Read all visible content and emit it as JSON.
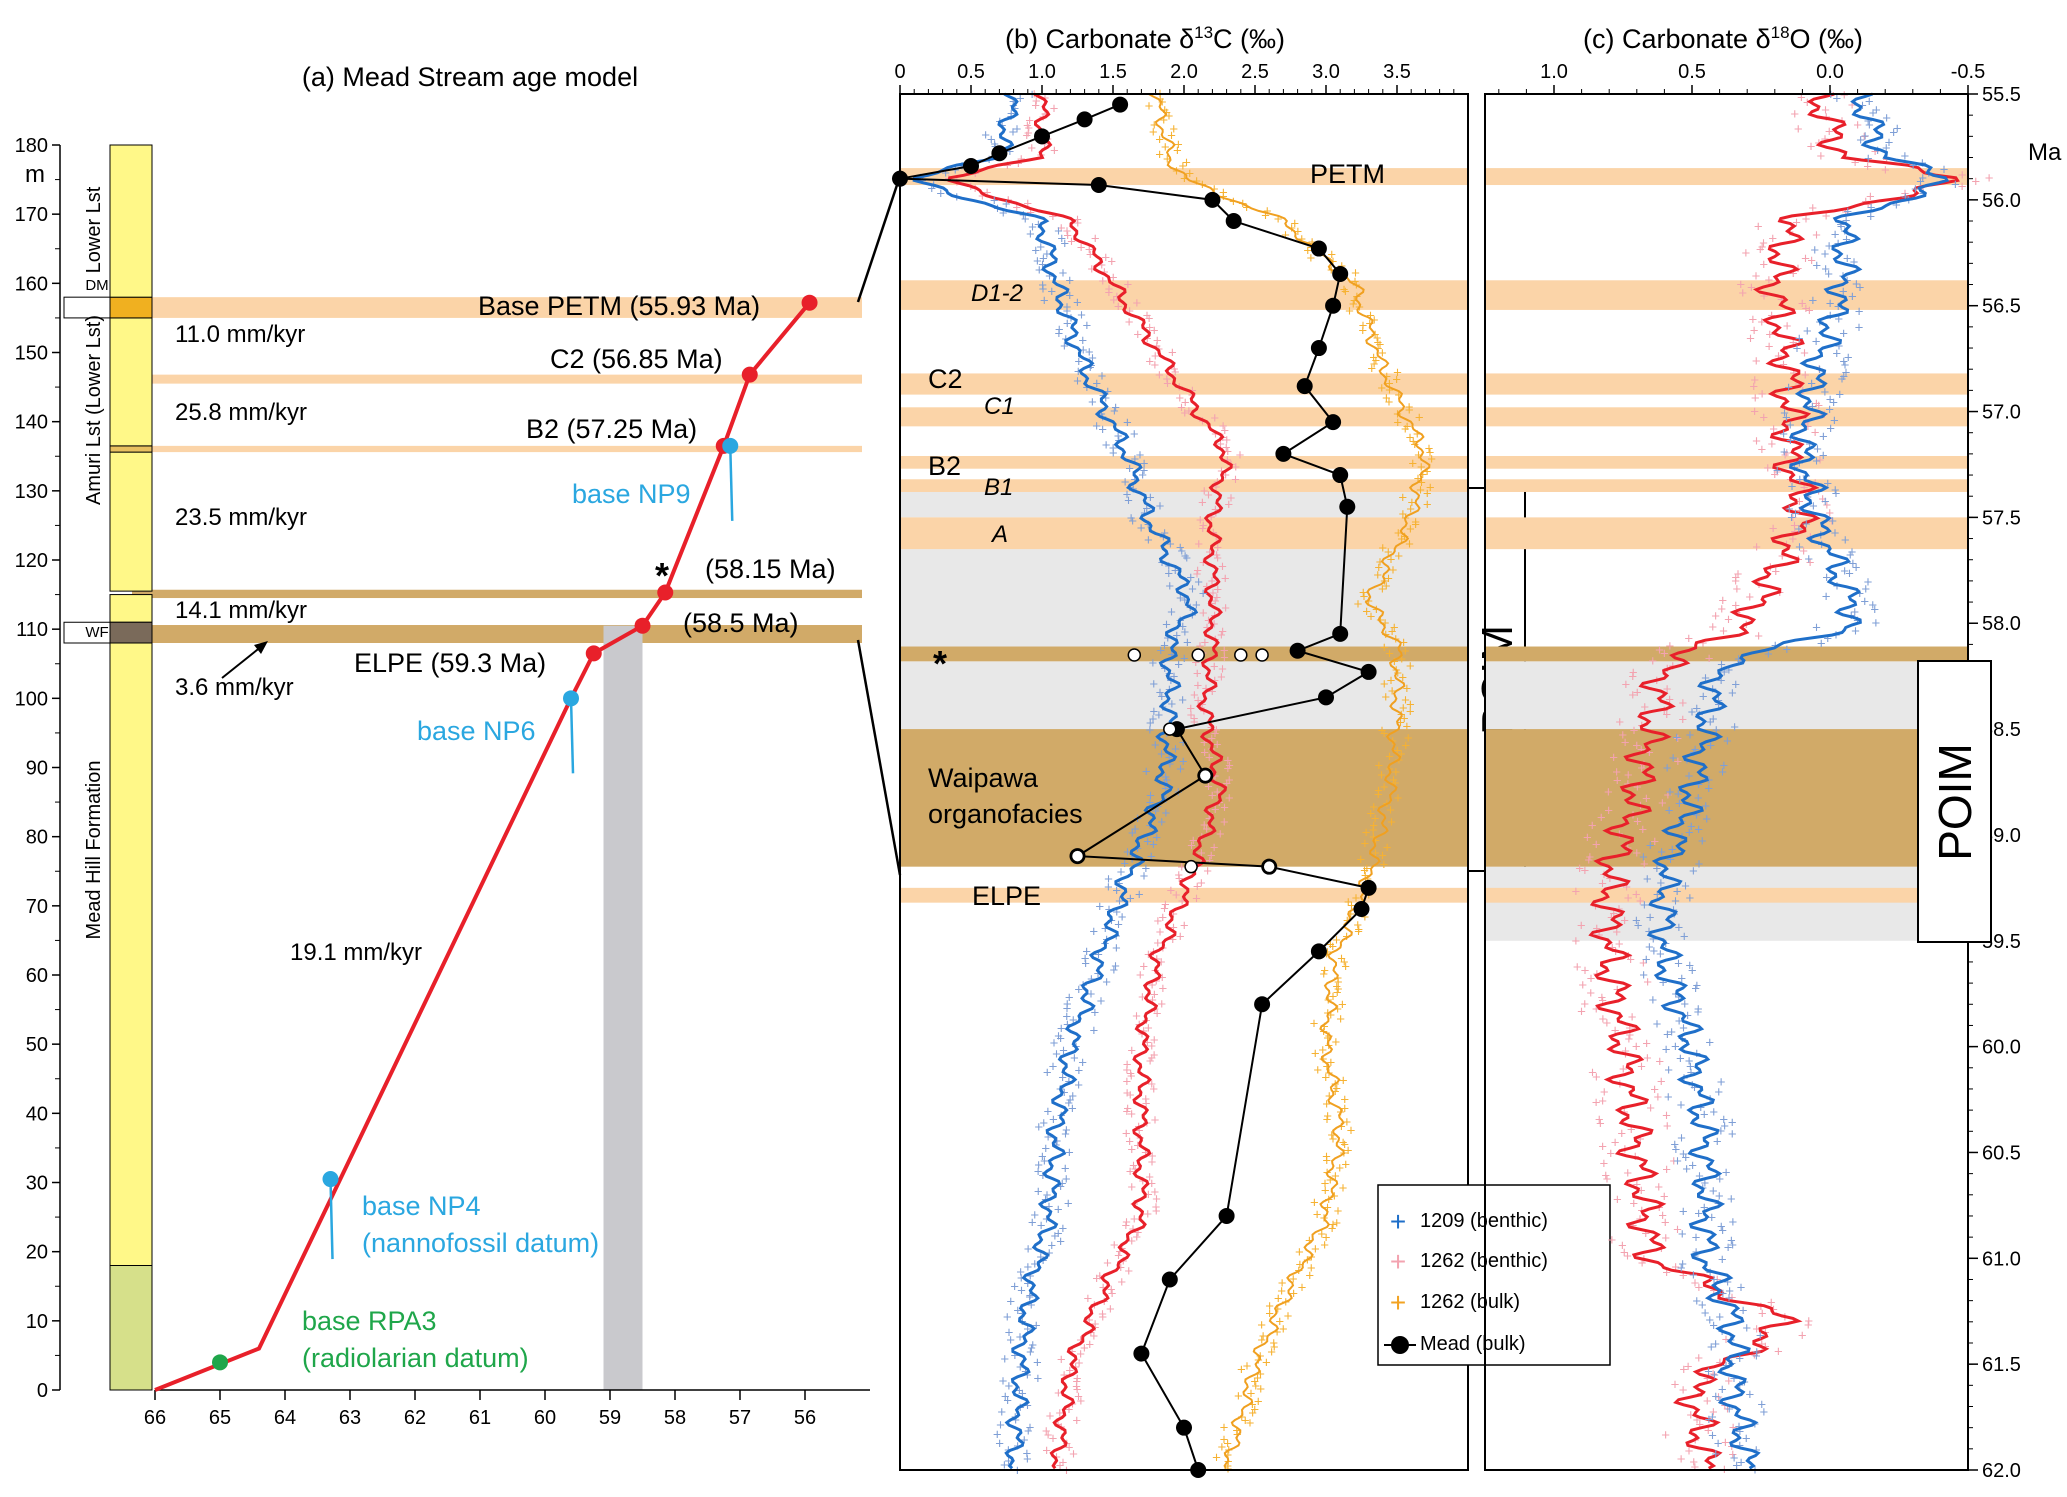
{
  "colors": {
    "red": "#e8202a",
    "blue_site1209": "#1f6fc9",
    "blue_pts": "#7f9fd6",
    "pink_pts": "#f3a3b0",
    "orange": "#f2a323",
    "mead": "#000000",
    "orange_band": "#fbd4a8",
    "brown_band": "#d1aa68",
    "gray_band": "#e8e8e8",
    "nanno": "#2aa7e0",
    "radio": "#1fa64a",
    "yellow": "#fff888",
    "green_unit": "#d6e08a"
  },
  "chart_data": [
    {
      "id": "a",
      "type": "line",
      "title": "(a) Mead Stream age model",
      "xlabel": "",
      "ylabel": "m",
      "xlim": [
        66,
        55
      ],
      "ylim": [
        0,
        180
      ],
      "xticks": [
        66,
        65,
        64,
        63,
        62,
        61,
        60,
        59,
        58,
        57,
        56
      ],
      "yticks": [
        0,
        10,
        20,
        30,
        40,
        50,
        60,
        70,
        80,
        90,
        100,
        110,
        120,
        130,
        140,
        150,
        160,
        170,
        180
      ],
      "series": [
        {
          "name": "age model",
          "x": [
            66.0,
            64.4,
            59.6,
            59.25,
            58.5,
            58.15,
            57.25,
            56.85,
            55.93
          ],
          "y": [
            0,
            6,
            100,
            106.5,
            110.5,
            115.3,
            136.5,
            146.8,
            157.2
          ]
        }
      ],
      "control_points": [
        {
          "label": "Base PETM (55.93 Ma)",
          "age": 55.93,
          "m": 157.2
        },
        {
          "label": "C2 (56.85 Ma)",
          "age": 56.85,
          "m": 146.8
        },
        {
          "label": "B2 (57.25 Ma)",
          "age": 57.25,
          "m": 136.5
        },
        {
          "label": "(58.15 Ma)",
          "age": 58.15,
          "m": 115.3
        },
        {
          "label": "(58.5 Ma)",
          "age": 58.5,
          "m": 110.5
        },
        {
          "label": "ELPE (59.3 Ma)",
          "age": 59.25,
          "m": 106.5
        }
      ],
      "datums": [
        {
          "label": "base NP9",
          "age": 57.15,
          "m": 136.5,
          "color": "#2aa7e0"
        },
        {
          "label": "base NP6",
          "age": 59.6,
          "m": 100,
          "color": "#2aa7e0"
        },
        {
          "label": "base NP4",
          "label2": "(nannofossil datum)",
          "age": 63.3,
          "m": 30.5,
          "color": "#2aa7e0"
        },
        {
          "label": "base RPA3",
          "label2": "(radiolarian datum)",
          "age": 65.0,
          "m": 4,
          "color": "#1fa64a"
        }
      ],
      "rates": [
        "11.0 mm/kyr",
        "25.8 mm/kyr",
        "23.5 mm/kyr",
        "14.1 mm/kyr",
        "3.6 mm/kyr",
        "19.1 mm/kyr"
      ],
      "star": "*",
      "gray_band_age": [
        59.1,
        58.5
      ],
      "units": [
        {
          "label": "Lower Lst",
          "from": 158,
          "to": 180
        },
        {
          "label": "DM",
          "from": 155,
          "to": 158
        },
        {
          "label": "Amuri Lst (Lower Lst)",
          "from": 115,
          "to": 155
        },
        {
          "label": "WF",
          "from": 108,
          "to": 111
        },
        {
          "label": "Mead Hill Formation",
          "from": 0,
          "to": 108
        }
      ]
    },
    {
      "id": "b",
      "type": "line",
      "title": "(b)  Carbonate δ13C (‰)",
      "title_main": "(b)  Carbonate δ",
      "title_sup": "13",
      "title_end": "C (‰)",
      "xlim": [
        0,
        4
      ],
      "ylim": [
        55.5,
        62.0
      ],
      "xticks": [
        "0",
        "0.5",
        "1.0",
        "1.5",
        "2.0",
        "2.5",
        "3.0",
        "3.5"
      ],
      "xtick_values": [
        0,
        0.5,
        1.0,
        1.5,
        2.0,
        2.5,
        3.0,
        3.5
      ],
      "series": [
        {
          "name": "1209 (benthic)",
          "ages": [
            55.5,
            55.8,
            55.9,
            56.1,
            56.4,
            56.8,
            57.2,
            57.5,
            57.9,
            58.1,
            58.4,
            58.8,
            59.2,
            59.6,
            60.0,
            60.4,
            60.8,
            61.2,
            61.5,
            62.0
          ],
          "values": [
            0.8,
            0.7,
            0.05,
            1.0,
            1.1,
            1.3,
            1.6,
            1.75,
            2.05,
            1.9,
            1.9,
            1.85,
            1.6,
            1.4,
            1.2,
            1.1,
            1.05,
            0.9,
            0.85,
            0.8
          ]
        },
        {
          "name": "1262 (benthic)",
          "ages": [
            55.5,
            55.8,
            55.9,
            56.1,
            56.4,
            56.8,
            57.2,
            57.5,
            57.9,
            58.1,
            58.4,
            58.8,
            59.2,
            59.6,
            60.0,
            60.4,
            60.8,
            61.2,
            61.5,
            62.0
          ],
          "values": [
            1.0,
            1.0,
            0.3,
            1.2,
            1.5,
            1.9,
            2.3,
            2.2,
            2.2,
            2.2,
            2.15,
            2.25,
            2.05,
            1.8,
            1.7,
            1.7,
            1.7,
            1.4,
            1.2,
            1.1
          ]
        },
        {
          "name": "1262 (bulk)",
          "ages": [
            55.5,
            55.8,
            55.9,
            56.1,
            56.4,
            56.8,
            57.2,
            57.5,
            57.9,
            58.1,
            58.4,
            58.8,
            59.2,
            59.6,
            60.0,
            60.4,
            60.8,
            61.2,
            61.5,
            62.0
          ],
          "values": [
            1.8,
            1.9,
            2.0,
            2.7,
            3.2,
            3.4,
            3.7,
            3.6,
            3.3,
            3.5,
            3.5,
            3.45,
            3.3,
            3.05,
            3.0,
            3.1,
            3.0,
            2.7,
            2.5,
            2.3
          ]
        },
        {
          "name": "Mead (bulk)",
          "ages": [
            55.55,
            55.62,
            55.7,
            55.78,
            55.84,
            55.9,
            55.93,
            56.0,
            56.1,
            56.23,
            56.35,
            56.5,
            56.7,
            56.88,
            57.05,
            57.2,
            57.3,
            57.45,
            58.05,
            58.13,
            58.23,
            58.35,
            58.5,
            58.72,
            59.1,
            59.15,
            59.25,
            59.35,
            59.55,
            59.8,
            60.8,
            61.1,
            61.45,
            61.8,
            62.0
          ],
          "values": [
            1.55,
            1.3,
            1.0,
            0.7,
            0.5,
            0.0,
            1.4,
            2.2,
            2.35,
            2.95,
            3.1,
            3.05,
            2.95,
            2.85,
            3.05,
            2.7,
            3.1,
            3.15,
            3.1,
            2.8,
            3.3,
            3.0,
            1.95,
            2.15,
            1.25,
            2.6,
            3.3,
            3.25,
            2.95,
            2.55,
            2.3,
            1.9,
            1.7,
            2.0,
            2.1
          ]
        }
      ],
      "hollow_points": [
        [
          58.15,
          1.65
        ],
        [
          58.15,
          2.1
        ],
        [
          58.15,
          2.4
        ],
        [
          58.15,
          2.55
        ],
        [
          58.5,
          1.9
        ],
        [
          58.72,
          2.15
        ],
        [
          59.1,
          1.25
        ],
        [
          59.15,
          2.05
        ],
        [
          59.15,
          2.6
        ]
      ],
      "event_labels": [
        "PETM",
        "D1-2",
        "C2",
        "C1",
        "B2",
        "B1",
        "A",
        "*",
        "Waipawa",
        "organofacies",
        "ELPE"
      ],
      "interval_label": "PCIM"
    },
    {
      "id": "c",
      "type": "line",
      "title": "(c)  Carbonate δ18O (‰)",
      "title_main": "(c)  Carbonate δ",
      "title_sup": "18",
      "title_end": "O (‰)",
      "xlim": [
        1.25,
        -0.5
      ],
      "ylim": [
        55.5,
        62.0
      ],
      "xticks": [
        "1.0",
        "0.5",
        "0.0",
        "-0.5"
      ],
      "xtick_values": [
        1.0,
        0.5,
        0.0,
        -0.5
      ],
      "yaxis_label": "Ma",
      "yticks": [
        "55.5",
        "56.0",
        "56.5",
        "57.0",
        "57.5",
        "58.0",
        "58.5",
        "59.0",
        "59.5",
        "60.0",
        "60.5",
        "61.0",
        "61.5",
        "62.0"
      ],
      "series": [
        {
          "name": "1209 (benthic)",
          "ages": [
            55.5,
            55.8,
            55.9,
            56.1,
            56.4,
            56.8,
            57.2,
            57.5,
            58.0,
            58.2,
            58.5,
            58.8,
            59.2,
            59.6,
            60.0,
            60.5,
            61.0,
            61.3,
            61.6,
            62.0
          ],
          "values": [
            -0.1,
            -0.2,
            -0.45,
            -0.05,
            -0.05,
            0.05,
            0.1,
            0.05,
            -0.1,
            0.4,
            0.45,
            0.5,
            0.6,
            0.6,
            0.5,
            0.45,
            0.45,
            0.35,
            0.35,
            0.3
          ]
        },
        {
          "name": "1262 (benthic)",
          "ages": [
            55.5,
            55.8,
            55.9,
            56.1,
            56.4,
            56.8,
            57.2,
            57.5,
            58.0,
            58.2,
            58.5,
            58.8,
            59.2,
            59.6,
            60.0,
            60.5,
            61.0,
            61.3,
            61.6,
            62.0
          ],
          "values": [
            0.05,
            -0.05,
            -0.5,
            0.15,
            0.2,
            0.15,
            0.15,
            0.1,
            0.3,
            0.6,
            0.65,
            0.7,
            0.8,
            0.8,
            0.75,
            0.7,
            0.65,
            0.15,
            0.5,
            0.45
          ]
        }
      ],
      "interval_label": "POIM"
    }
  ],
  "legend": [
    {
      "label": "1209 (benthic)",
      "marker": "+"
    },
    {
      "label": "1262 (benthic)",
      "marker": "+"
    },
    {
      "label": "1262 (bulk)",
      "marker": "+"
    },
    {
      "label": "Mead (bulk)",
      "marker": "circle-line"
    }
  ],
  "bands": {
    "orange": [
      [
        55.85,
        55.93
      ],
      [
        56.38,
        56.52
      ],
      [
        56.82,
        56.92
      ],
      [
        56.98,
        57.07
      ],
      [
        57.21,
        57.27
      ],
      [
        57.32,
        57.38
      ],
      [
        57.5,
        57.65
      ]
    ],
    "brown_thin": [
      58.11,
      58.18
    ],
    "waipawa": [
      58.5,
      59.15
    ],
    "elpe": [
      59.25,
      59.32
    ],
    "gray_b": [
      [
        57.38,
        57.5
      ],
      [
        57.65,
        58.11
      ],
      [
        58.18,
        58.5
      ]
    ],
    "gray_c": [
      [
        58.18,
        58.5
      ],
      [
        59.15,
        59.5
      ]
    ]
  }
}
